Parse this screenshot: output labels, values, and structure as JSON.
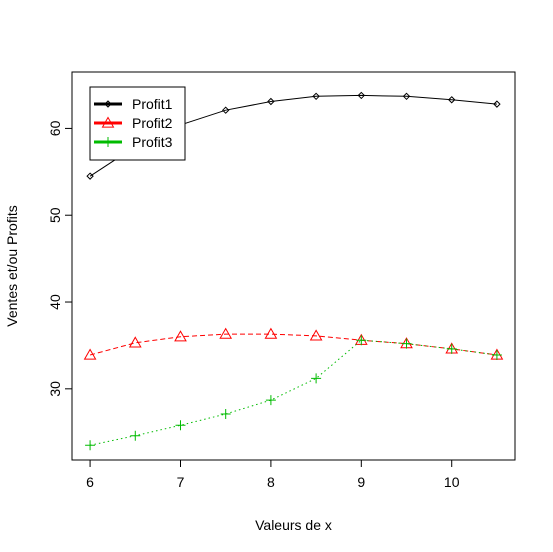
{
  "chart_data": {
    "type": "line",
    "title": "",
    "xlabel": "Valeurs de x",
    "ylabel": "Ventes et/ou Profits",
    "xlim": [
      5.8,
      10.7
    ],
    "ylim": [
      21.8,
      66.5
    ],
    "x_ticks": [
      6,
      7,
      8,
      9,
      10
    ],
    "x_tick_labels": [
      "6",
      "7",
      "8",
      "9",
      "10"
    ],
    "y_ticks": [
      30,
      40,
      50,
      60
    ],
    "y_tick_labels": [
      "30",
      "40",
      "50",
      "60"
    ],
    "grid": false,
    "legend_position": "top-left",
    "x": [
      6,
      6.5,
      7,
      7.5,
      8,
      8.5,
      9,
      9.5,
      10,
      10.5
    ],
    "series": [
      {
        "name": "Profit1",
        "color": "#000000",
        "line_style": "solid",
        "marker": "diamond",
        "values": [
          54.5,
          57.9,
          60.4,
          62.1,
          63.1,
          63.7,
          63.8,
          63.7,
          63.3,
          62.8
        ]
      },
      {
        "name": "Profit2",
        "color": "#ff0000",
        "line_style": "dashed",
        "marker": "triangle",
        "values": [
          33.9,
          35.3,
          36.0,
          36.3,
          36.3,
          36.1,
          35.6,
          35.2,
          34.6,
          33.9
        ]
      },
      {
        "name": "Profit3",
        "color": "#00bb00",
        "line_style": "dotted",
        "marker": "plus",
        "values": [
          23.5,
          24.6,
          25.8,
          27.1,
          28.7,
          31.2,
          35.6,
          35.2,
          34.6,
          33.9
        ]
      }
    ]
  }
}
